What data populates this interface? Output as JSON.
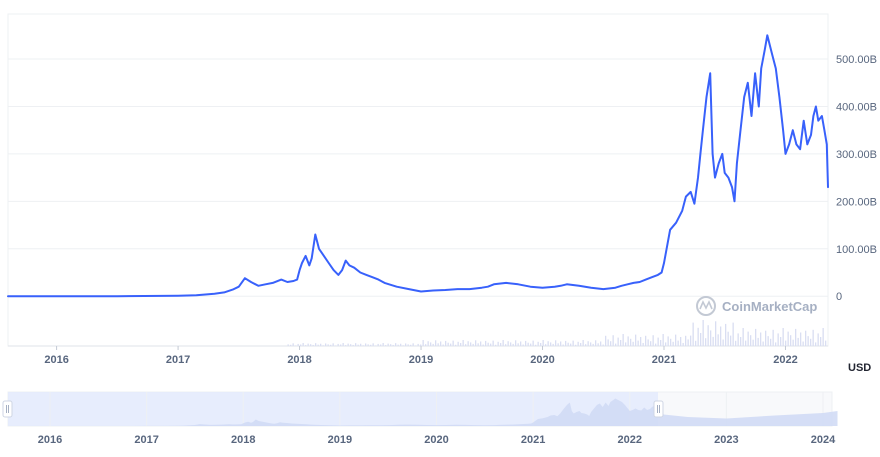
{
  "chart_data": {
    "type": "line",
    "currency_unit": "USD",
    "watermark": "CoinMarketCap",
    "y_ticks": [
      "0",
      "100.00B",
      "200.00B",
      "300.00B",
      "400.00B",
      "500.00B"
    ],
    "y_tick_values": [
      0,
      100,
      200,
      300,
      400,
      500
    ],
    "y_unit_scale": "billions",
    "ylim": [
      -105,
      595
    ],
    "xlim": [
      2015.6,
      2022.35
    ],
    "x_ticks": [
      "2016",
      "2017",
      "2018",
      "2019",
      "2020",
      "2021",
      "2022"
    ],
    "x_tick_values": [
      2016,
      2017,
      2018,
      2019,
      2020,
      2021,
      2022
    ],
    "grid": true,
    "series": [
      {
        "color": "#3861fb",
        "x": [
          2015.6,
          2016.0,
          2016.5,
          2017.0,
          2017.15,
          2017.3,
          2017.38,
          2017.45,
          2017.5,
          2017.55,
          2017.6,
          2017.66,
          2017.72,
          2017.78,
          2017.85,
          2017.9,
          2017.95,
          2017.98,
          2018.0,
          2018.02,
          2018.05,
          2018.08,
          2018.1,
          2018.13,
          2018.16,
          2018.2,
          2018.24,
          2018.28,
          2018.32,
          2018.35,
          2018.38,
          2018.41,
          2018.45,
          2018.5,
          2018.55,
          2018.6,
          2018.65,
          2018.7,
          2018.8,
          2018.9,
          2019.0,
          2019.1,
          2019.2,
          2019.3,
          2019.4,
          2019.5,
          2019.55,
          2019.6,
          2019.7,
          2019.8,
          2019.9,
          2020.0,
          2020.1,
          2020.15,
          2020.2,
          2020.3,
          2020.4,
          2020.5,
          2020.6,
          2020.65,
          2020.7,
          2020.75,
          2020.8,
          2020.85,
          2020.9,
          2020.95,
          2020.98,
          2021.0,
          2021.05,
          2021.1,
          2021.15,
          2021.18,
          2021.22,
          2021.25,
          2021.28,
          2021.3,
          2021.32,
          2021.35,
          2021.38,
          2021.4,
          2021.42,
          2021.45,
          2021.48,
          2021.5,
          2021.53,
          2021.56,
          2021.58,
          2021.6,
          2021.63,
          2021.66,
          2021.69,
          2021.72,
          2021.75,
          2021.78,
          2021.8,
          2021.83,
          2021.85,
          2021.87,
          2021.89,
          2021.92,
          2021.95,
          2021.98,
          2022.0,
          2022.03,
          2022.06,
          2022.09,
          2022.12,
          2022.15,
          2022.18,
          2022.21,
          2022.23,
          2022.25,
          2022.27,
          2022.3,
          2022.32,
          2022.34,
          2022.35
        ],
        "y": [
          0,
          0,
          0,
          1,
          2,
          5,
          8,
          14,
          20,
          38,
          30,
          22,
          25,
          28,
          35,
          30,
          32,
          35,
          55,
          70,
          85,
          65,
          80,
          130,
          100,
          85,
          70,
          55,
          45,
          55,
          75,
          65,
          60,
          50,
          45,
          40,
          35,
          28,
          20,
          15,
          10,
          12,
          13,
          15,
          15,
          18,
          20,
          25,
          28,
          25,
          20,
          18,
          20,
          22,
          25,
          22,
          18,
          15,
          18,
          22,
          25,
          28,
          30,
          35,
          40,
          45,
          50,
          70,
          140,
          155,
          180,
          210,
          220,
          195,
          250,
          300,
          350,
          420,
          470,
          300,
          250,
          280,
          300,
          260,
          250,
          230,
          200,
          280,
          350,
          420,
          450,
          380,
          470,
          400,
          480,
          520,
          550,
          530,
          510,
          480,
          420,
          350,
          300,
          320,
          350,
          320,
          310,
          370,
          320,
          340,
          380,
          400,
          370,
          380,
          350,
          320,
          230
        ]
      }
    ],
    "navigator": {
      "x_ticks": [
        "2016",
        "2017",
        "2018",
        "2019",
        "2020",
        "2021",
        "2022",
        "2023",
        "2024"
      ]
    }
  }
}
